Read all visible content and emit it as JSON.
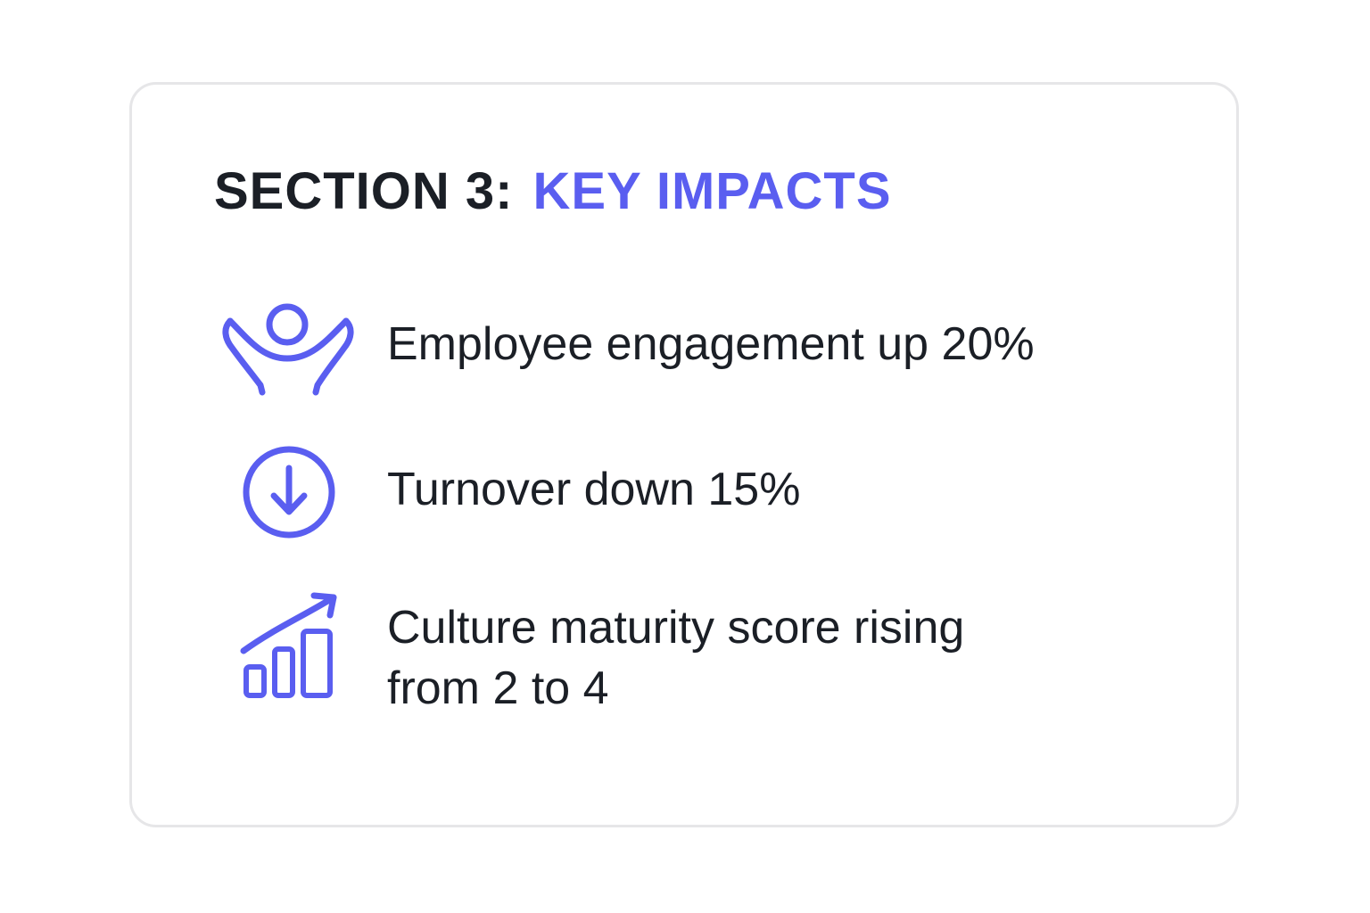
{
  "header": {
    "prefix": "SECTION 3:",
    "title": "KEY IMPACTS"
  },
  "colors": {
    "accent": "#5a5ef0",
    "text": "#1b1f26",
    "card_border": "#e6e6e8"
  },
  "items": [
    {
      "icon": "celebrating-person-icon",
      "line1": "Employee engagement up 20%",
      "line2": ""
    },
    {
      "icon": "arrow-down-circle-icon",
      "line1": "Turnover down 15%",
      "line2": ""
    },
    {
      "icon": "growth-chart-icon",
      "line1": "Culture maturity score rising",
      "line2": "from 2 to 4"
    }
  ]
}
